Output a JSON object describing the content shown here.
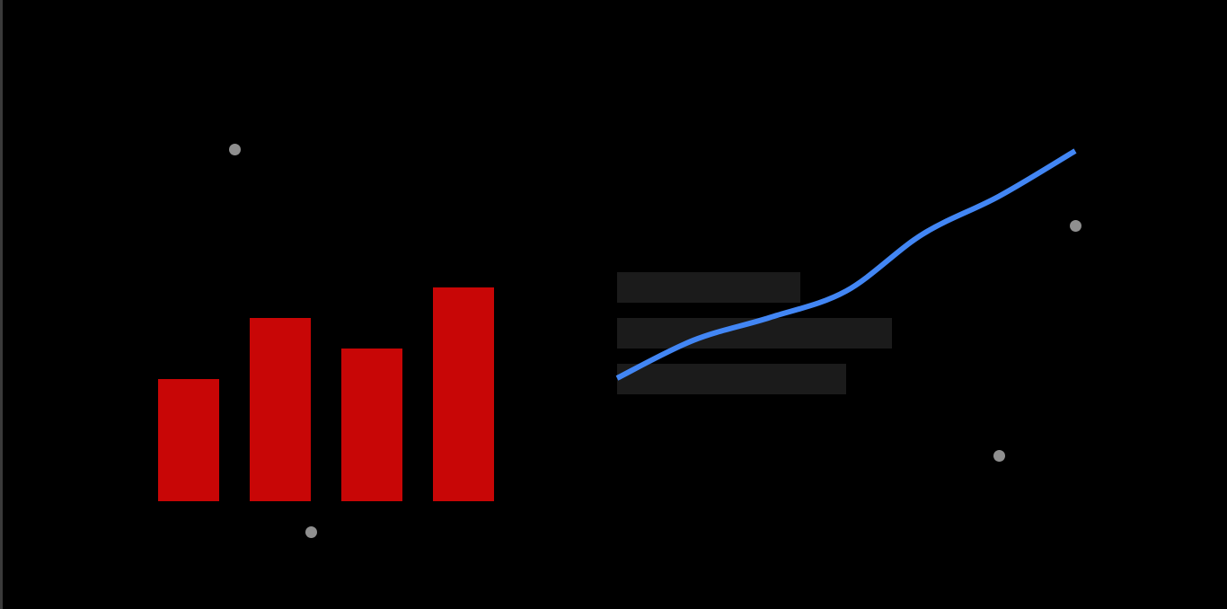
{
  "colors": {
    "background": "#000000",
    "edge": "#3a3a3a",
    "bar": "#c80606",
    "line": "#4286f4",
    "placeholder_line": "#1b1b1b",
    "dot": "#8f8f8f"
  },
  "chart_data": [
    {
      "type": "bar",
      "categories": [
        "",
        "",
        "",
        ""
      ],
      "values": [
        4,
        6,
        5,
        7
      ],
      "ylim": [
        0,
        7
      ],
      "grid": false
    },
    {
      "type": "line",
      "x": [
        0,
        1,
        2,
        3,
        4,
        5,
        6
      ],
      "series": [
        {
          "values": [
            0.0,
            1.0,
            1.6,
            2.3,
            3.8,
            4.8,
            6.0
          ]
        }
      ],
      "grid": false
    }
  ]
}
